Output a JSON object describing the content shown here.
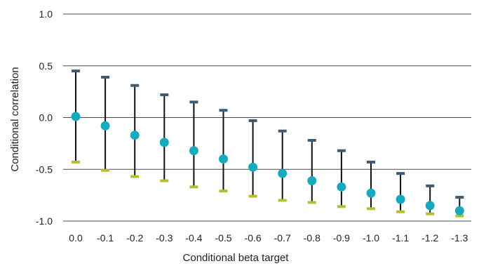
{
  "chart_data": {
    "type": "scatter",
    "title": "",
    "xlabel": "Conditional beta target",
    "ylabel": "Conditional correlation",
    "x_tick_labels": [
      "0.0",
      "-0.1",
      "-0.2",
      "-0.3",
      "-0.4",
      "-0.5",
      "-0.6",
      "-0.7",
      "-0.8",
      "-0.9",
      "-1.0",
      "-1.1",
      "-1.2",
      "-1.3"
    ],
    "y_tick_labels": [
      "1.0",
      "0.5",
      "0.0",
      "-0.5",
      "-1.0"
    ],
    "y_ticks": [
      1.0,
      0.5,
      0.0,
      -0.5,
      -1.0
    ],
    "ylim": [
      -1.0,
      1.0
    ],
    "grid": "horizontal",
    "legend": "none",
    "points": [
      {
        "x": 0.0,
        "mean": 0.01,
        "upper": 0.45,
        "lower": -0.43
      },
      {
        "x": -0.1,
        "mean": -0.08,
        "upper": 0.39,
        "lower": -0.51
      },
      {
        "x": -0.2,
        "mean": -0.17,
        "upper": 0.31,
        "lower": -0.57
      },
      {
        "x": -0.3,
        "mean": -0.24,
        "upper": 0.22,
        "lower": -0.61
      },
      {
        "x": -0.4,
        "mean": -0.32,
        "upper": 0.15,
        "lower": -0.67
      },
      {
        "x": -0.5,
        "mean": -0.4,
        "upper": 0.07,
        "lower": -0.71
      },
      {
        "x": -0.6,
        "mean": -0.48,
        "upper": -0.03,
        "lower": -0.76
      },
      {
        "x": -0.7,
        "mean": -0.54,
        "upper": -0.13,
        "lower": -0.8
      },
      {
        "x": -0.8,
        "mean": -0.61,
        "upper": -0.22,
        "lower": -0.82
      },
      {
        "x": -0.9,
        "mean": -0.67,
        "upper": -0.32,
        "lower": -0.86
      },
      {
        "x": -1.0,
        "mean": -0.73,
        "upper": -0.43,
        "lower": -0.88
      },
      {
        "x": -1.1,
        "mean": -0.79,
        "upper": -0.54,
        "lower": -0.91
      },
      {
        "x": -1.2,
        "mean": -0.85,
        "upper": -0.66,
        "lower": -0.93
      },
      {
        "x": -1.3,
        "mean": -0.9,
        "upper": -0.77,
        "lower": -0.95
      }
    ],
    "colors": {
      "mean_marker": "#17a9bd",
      "upper_cap": "#3f5a73",
      "lower_cap": "#b5be2c",
      "whisker": "#111111",
      "grid": "#4a4a4a"
    }
  }
}
